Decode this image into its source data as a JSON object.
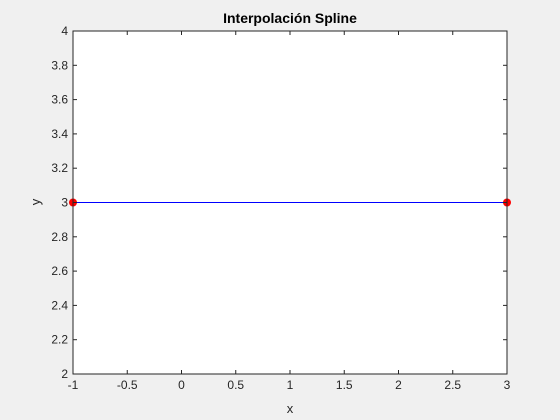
{
  "chart_data": {
    "type": "line",
    "title": "Interpolación Spline",
    "xlabel": "x",
    "ylabel": "y",
    "xlim": [
      -1,
      3
    ],
    "ylim": [
      2,
      4
    ],
    "xticks": [
      -1,
      -0.5,
      0,
      0.5,
      1,
      1.5,
      2,
      2.5,
      3
    ],
    "xtick_labels": [
      "-1",
      "-0.5",
      "0",
      "0.5",
      "1",
      "1.5",
      "2",
      "2.5",
      "3"
    ],
    "yticks": [
      2,
      2.2,
      2.4,
      2.6,
      2.8,
      3,
      3.2,
      3.4,
      3.6,
      3.8,
      4
    ],
    "ytick_labels": [
      "2",
      "2.2",
      "2.4",
      "2.6",
      "2.8",
      "3",
      "3.2",
      "3.4",
      "3.6",
      "3.8",
      "4"
    ],
    "grid": false,
    "series": [
      {
        "type": "line",
        "color": "#0000ff",
        "x": [
          -1,
          3
        ],
        "y": [
          3,
          3
        ]
      },
      {
        "type": "scatter",
        "marker": "circle",
        "color": "#ff0000",
        "x": [
          -1,
          3
        ],
        "y": [
          3,
          3
        ]
      }
    ]
  }
}
